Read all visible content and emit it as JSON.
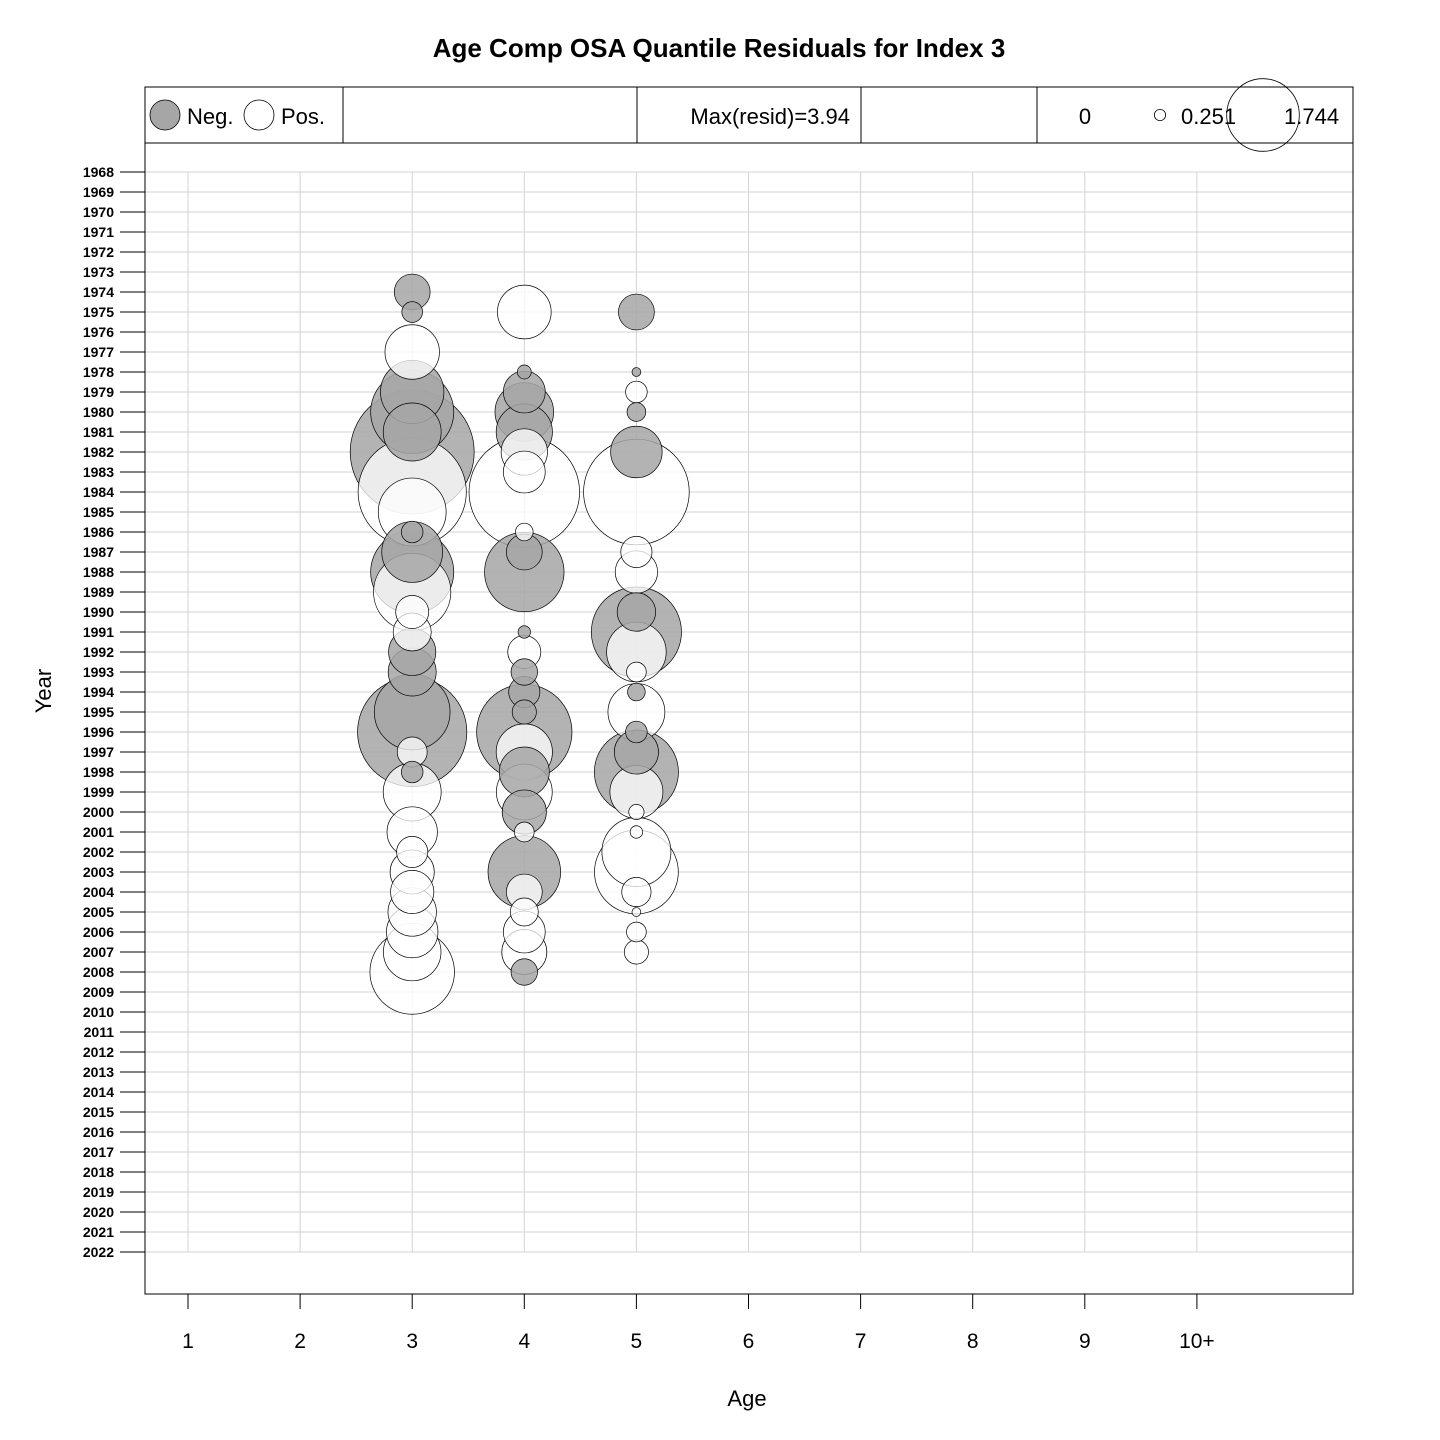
{
  "chart_data": {
    "type": "bubble",
    "title": "Age Comp OSA Quantile Residuals for Index 3",
    "xlabel": "Age",
    "ylabel": "Year",
    "x_ticks": [
      "1",
      "2",
      "3",
      "4",
      "5",
      "6",
      "7",
      "8",
      "9",
      "10+"
    ],
    "y_ticks": [
      "1968",
      "1969",
      "1970",
      "1971",
      "1972",
      "1973",
      "1974",
      "1975",
      "1976",
      "1977",
      "1978",
      "1979",
      "1980",
      "1981",
      "1982",
      "1983",
      "1984",
      "1985",
      "1986",
      "1987",
      "1988",
      "1989",
      "1990",
      "1991",
      "1992",
      "1993",
      "1994",
      "1995",
      "1996",
      "1997",
      "1998",
      "1999",
      "2000",
      "2001",
      "2002",
      "2003",
      "2004",
      "2005",
      "2006",
      "2007",
      "2008",
      "2009",
      "2010",
      "2011",
      "2012",
      "2013",
      "2014",
      "2015",
      "2016",
      "2017",
      "2018",
      "2019",
      "2020",
      "2021",
      "2022"
    ],
    "grid": true,
    "colors": {
      "neg_fill": "#a6a6a6",
      "pos_fill": "#ffffff",
      "stroke": "#000000",
      "grid": "#d3d3d3"
    },
    "legend": {
      "sign": {
        "neg_label": "Neg.",
        "pos_label": "Pos."
      },
      "max_label": "Max(resid)=3.94",
      "size_keys": [
        {
          "label": "0",
          "value": 0
        },
        {
          "label": "0.251",
          "value": 0.251
        },
        {
          "label": "1.744",
          "value": 1.744
        }
      ]
    },
    "max_resid": 3.94,
    "points": [
      {
        "year": 1974,
        "age": 3,
        "resid": -0.33
      },
      {
        "year": 1975,
        "age": 3,
        "resid": -0.11
      },
      {
        "year": 1975,
        "age": 4,
        "resid": 0.74
      },
      {
        "year": 1975,
        "age": 5,
        "resid": -0.33
      },
      {
        "year": 1977,
        "age": 3,
        "resid": 0.76
      },
      {
        "year": 1978,
        "age": 4,
        "resid": -0.05
      },
      {
        "year": 1978,
        "age": 5,
        "resid": -0.02
      },
      {
        "year": 1979,
        "age": 3,
        "resid": -1.03
      },
      {
        "year": 1979,
        "age": 4,
        "resid": -0.45
      },
      {
        "year": 1979,
        "age": 5,
        "resid": 0.12
      },
      {
        "year": 1980,
        "age": 3,
        "resid": -1.77
      },
      {
        "year": 1980,
        "age": 4,
        "resid": -0.88
      },
      {
        "year": 1980,
        "age": 5,
        "resid": -0.09
      },
      {
        "year": 1981,
        "age": 3,
        "resid": -0.86
      },
      {
        "year": 1981,
        "age": 4,
        "resid": -0.81
      },
      {
        "year": 1982,
        "age": 3,
        "resid": -3.94
      },
      {
        "year": 1982,
        "age": 4,
        "resid": 0.55
      },
      {
        "year": 1982,
        "age": 5,
        "resid": -0.68
      },
      {
        "year": 1983,
        "age": 4,
        "resid": 0.45
      },
      {
        "year": 1984,
        "age": 3,
        "resid": 3.0
      },
      {
        "year": 1984,
        "age": 4,
        "resid": 3.13
      },
      {
        "year": 1984,
        "age": 5,
        "resid": 2.86
      },
      {
        "year": 1985,
        "age": 3,
        "resid": 1.18
      },
      {
        "year": 1986,
        "age": 3,
        "resid": -0.12
      },
      {
        "year": 1986,
        "age": 4,
        "resid": 0.08
      },
      {
        "year": 1987,
        "age": 3,
        "resid": -0.95
      },
      {
        "year": 1987,
        "age": 4,
        "resid": -0.33
      },
      {
        "year": 1987,
        "age": 5,
        "resid": 0.25
      },
      {
        "year": 1988,
        "age": 3,
        "resid": -1.77
      },
      {
        "year": 1988,
        "age": 4,
        "resid": -1.62
      },
      {
        "year": 1988,
        "age": 5,
        "resid": 0.46
      },
      {
        "year": 1989,
        "age": 3,
        "resid": 1.53
      },
      {
        "year": 1990,
        "age": 3,
        "resid": 0.28
      },
      {
        "year": 1990,
        "age": 5,
        "resid": -0.38
      },
      {
        "year": 1991,
        "age": 3,
        "resid": 0.37
      },
      {
        "year": 1991,
        "age": 4,
        "resid": -0.04
      },
      {
        "year": 1991,
        "age": 5,
        "resid": -2.08
      },
      {
        "year": 1992,
        "age": 3,
        "resid": -0.57
      },
      {
        "year": 1992,
        "age": 4,
        "resid": 0.28
      },
      {
        "year": 1992,
        "age": 5,
        "resid": 0.91
      },
      {
        "year": 1993,
        "age": 3,
        "resid": -0.59
      },
      {
        "year": 1993,
        "age": 4,
        "resid": -0.18
      },
      {
        "year": 1993,
        "age": 5,
        "resid": 0.1
      },
      {
        "year": 1994,
        "age": 4,
        "resid": -0.25
      },
      {
        "year": 1994,
        "age": 5,
        "resid": -0.08
      },
      {
        "year": 1995,
        "age": 3,
        "resid": -1.47
      },
      {
        "year": 1995,
        "age": 4,
        "resid": -0.15
      },
      {
        "year": 1995,
        "age": 5,
        "resid": 0.83
      },
      {
        "year": 1996,
        "age": 3,
        "resid": -3.06
      },
      {
        "year": 1996,
        "age": 4,
        "resid": -2.33
      },
      {
        "year": 1996,
        "age": 5,
        "resid": -0.12
      },
      {
        "year": 1997,
        "age": 3,
        "resid": 0.23
      },
      {
        "year": 1997,
        "age": 4,
        "resid": 0.81
      },
      {
        "year": 1997,
        "age": 5,
        "resid": -0.5
      },
      {
        "year": 1998,
        "age": 3,
        "resid": -0.12
      },
      {
        "year": 1998,
        "age": 4,
        "resid": -0.64
      },
      {
        "year": 1998,
        "age": 5,
        "resid": -1.81
      },
      {
        "year": 1999,
        "age": 3,
        "resid": 0.86
      },
      {
        "year": 1999,
        "age": 4,
        "resid": 0.8
      },
      {
        "year": 1999,
        "age": 5,
        "resid": 0.72
      },
      {
        "year": 2000,
        "age": 4,
        "resid": -0.5
      },
      {
        "year": 2000,
        "age": 5,
        "resid": 0.06
      },
      {
        "year": 2001,
        "age": 3,
        "resid": 0.65
      },
      {
        "year": 2001,
        "age": 4,
        "resid": 0.1
      },
      {
        "year": 2001,
        "age": 5,
        "resid": 0.04
      },
      {
        "year": 2002,
        "age": 3,
        "resid": 0.25
      },
      {
        "year": 2002,
        "age": 5,
        "resid": 1.22
      },
      {
        "year": 2003,
        "age": 3,
        "resid": 0.5
      },
      {
        "year": 2003,
        "age": 4,
        "resid": -1.35
      },
      {
        "year": 2003,
        "age": 5,
        "resid": 1.8
      },
      {
        "year": 2004,
        "age": 3,
        "resid": 0.48
      },
      {
        "year": 2004,
        "age": 4,
        "resid": 0.33
      },
      {
        "year": 2004,
        "age": 5,
        "resid": 0.22
      },
      {
        "year": 2005,
        "age": 3,
        "resid": 0.6
      },
      {
        "year": 2005,
        "age": 4,
        "resid": 0.2
      },
      {
        "year": 2005,
        "age": 5,
        "resid": 0.02
      },
      {
        "year": 2006,
        "age": 3,
        "resid": 0.68
      },
      {
        "year": 2006,
        "age": 4,
        "resid": 0.45
      },
      {
        "year": 2006,
        "age": 5,
        "resid": 0.1
      },
      {
        "year": 2007,
        "age": 3,
        "resid": 0.85
      },
      {
        "year": 2007,
        "age": 4,
        "resid": 0.52
      },
      {
        "year": 2007,
        "age": 5,
        "resid": 0.15
      },
      {
        "year": 2008,
        "age": 3,
        "resid": 1.83
      },
      {
        "year": 2008,
        "age": 4,
        "resid": -0.18
      }
    ]
  }
}
